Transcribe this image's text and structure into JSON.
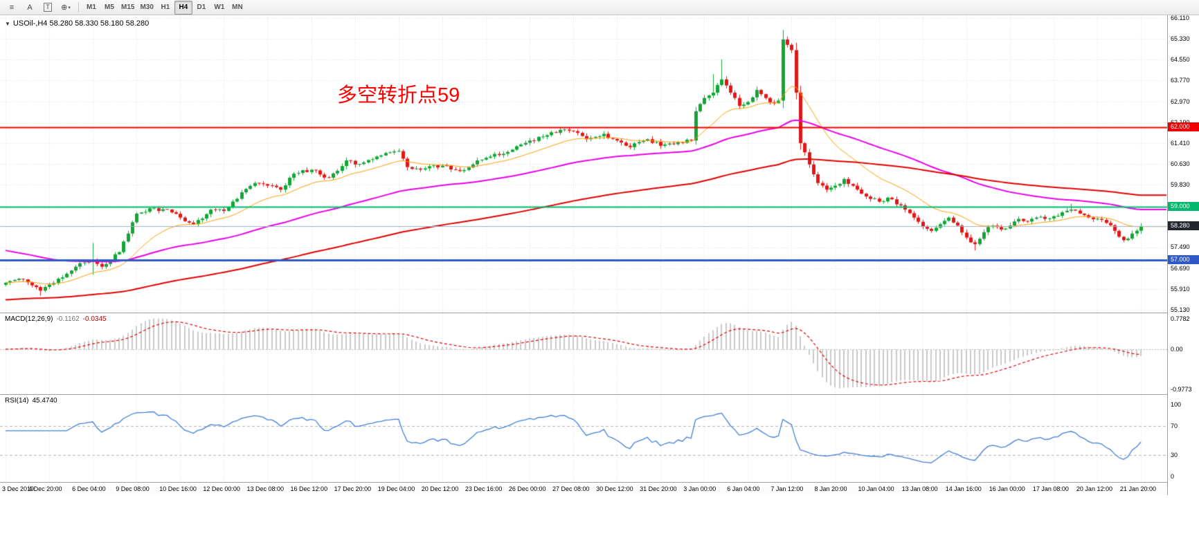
{
  "toolbar": {
    "icons": [
      {
        "name": "menu-icon",
        "glyph": "≡"
      },
      {
        "name": "text-tool-icon",
        "glyph": "A"
      },
      {
        "name": "text-frame-tool-icon",
        "glyph": "T"
      },
      {
        "name": "indicator-dropdown-icon",
        "glyph": "⊕",
        "caret": "▾"
      }
    ],
    "timeframes": [
      {
        "label": "M1",
        "active": false
      },
      {
        "label": "M5",
        "active": false
      },
      {
        "label": "M15",
        "active": false
      },
      {
        "label": "M30",
        "active": false
      },
      {
        "label": "H1",
        "active": false
      },
      {
        "label": "H4",
        "active": true
      },
      {
        "label": "D1",
        "active": false
      },
      {
        "label": "W1",
        "active": false
      },
      {
        "label": "MN",
        "active": false
      }
    ]
  },
  "price_panel": {
    "collapse_icon": "▼",
    "title": "USOil-,H4 58.280 58.330 58.180 58.280",
    "y_axis_labels": [
      {
        "text": "66.110",
        "value": 66.11
      },
      {
        "text": "65.330",
        "value": 65.33
      },
      {
        "text": "64.550",
        "value": 64.55
      },
      {
        "text": "63.770",
        "value": 63.77
      },
      {
        "text": "62.970",
        "value": 62.97
      },
      {
        "text": "62.190",
        "value": 62.19
      },
      {
        "text": "61.410",
        "value": 61.41
      },
      {
        "text": "60.630",
        "value": 60.63
      },
      {
        "text": "59.830",
        "value": 59.83
      },
      {
        "text": "57.490",
        "value": 57.49
      },
      {
        "text": "56.690",
        "value": 56.69
      },
      {
        "text": "55.910",
        "value": 55.91
      },
      {
        "text": "55.130",
        "value": 55.13
      }
    ],
    "annotation": {
      "text": "多空转折点59",
      "color": "#ff0000"
    }
  },
  "macd_panel": {
    "label": "MACD(12,26,9)",
    "main_value": "-0.1162",
    "signal_value": "-0.0345",
    "axis_labels": [
      "0.7782",
      "0.00",
      "-0.9773"
    ]
  },
  "rsi_panel": {
    "label": "RSI(14)",
    "value": "45.4740",
    "axis_labels": [
      "100",
      "70",
      "30",
      "0"
    ],
    "axis_values": [
      100,
      70,
      30,
      0
    ]
  },
  "time_axis": {
    "labels": [
      "3 Dec 2019",
      "4 Dec 20:00",
      "6 Dec 04:00",
      "9 Dec 08:00",
      "10 Dec 16:00",
      "12 Dec 00:00",
      "13 Dec 08:00",
      "16 Dec 12:00",
      "17 Dec 20:00",
      "19 Dec 04:00",
      "20 Dec 12:00",
      "23 Dec 16:00",
      "26 Dec 00:00",
      "27 Dec 08:00",
      "30 Dec 12:00",
      "31 Dec 20:00",
      "3 Jan 00:00",
      "6 Jan 04:00",
      "7 Jan 12:00",
      "8 Jan 20:00",
      "10 Jan 04:00",
      "13 Jan 08:00",
      "14 Jan 16:00",
      "16 Jan 00:00",
      "17 Jan 08:00",
      "20 Jan 12:00",
      "21 Jan 20:00"
    ]
  },
  "chart_data": {
    "type": "candlestick",
    "symbol": "USOil-",
    "timeframe": "H4",
    "current_ohlc": {
      "open": 58.28,
      "high": 58.33,
      "low": 58.18,
      "close": 58.28
    },
    "last_close": 58.28,
    "price_range": [
      55.13,
      66.11
    ],
    "grid_step": 0.78429,
    "bars": 261,
    "price_keypoints": [
      [
        0,
        56.15
      ],
      [
        3,
        56.3
      ],
      [
        6,
        56.05
      ],
      [
        8,
        55.85
      ],
      [
        12,
        56.3
      ],
      [
        16,
        56.75
      ],
      [
        20,
        57.0
      ],
      [
        22,
        56.75
      ],
      [
        26,
        57.3
      ],
      [
        28,
        58.0
      ],
      [
        30,
        58.75
      ],
      [
        34,
        58.95
      ],
      [
        38,
        58.8
      ],
      [
        40,
        58.6
      ],
      [
        43,
        58.35
      ],
      [
        47,
        58.9
      ],
      [
        50,
        58.85
      ],
      [
        54,
        59.55
      ],
      [
        57,
        59.9
      ],
      [
        60,
        59.8
      ],
      [
        63,
        59.65
      ],
      [
        66,
        60.25
      ],
      [
        70,
        60.4
      ],
      [
        74,
        60.1
      ],
      [
        78,
        60.75
      ],
      [
        80,
        60.6
      ],
      [
        84,
        60.8
      ],
      [
        88,
        61.05
      ],
      [
        90,
        61.1
      ],
      [
        92,
        60.5
      ],
      [
        96,
        60.45
      ],
      [
        100,
        60.55
      ],
      [
        104,
        60.35
      ],
      [
        108,
        60.75
      ],
      [
        110,
        60.85
      ],
      [
        114,
        61.0
      ],
      [
        118,
        61.35
      ],
      [
        120,
        61.5
      ],
      [
        124,
        61.7
      ],
      [
        127,
        61.9
      ],
      [
        130,
        61.85
      ],
      [
        133,
        61.55
      ],
      [
        137,
        61.75
      ],
      [
        140,
        61.5
      ],
      [
        143,
        61.25
      ],
      [
        147,
        61.55
      ],
      [
        150,
        61.3
      ],
      [
        154,
        61.45
      ],
      [
        157,
        61.5
      ],
      [
        158,
        62.6
      ],
      [
        160,
        63.1
      ],
      [
        162,
        63.3
      ],
      [
        164,
        63.8
      ],
      [
        166,
        63.3
      ],
      [
        168,
        62.8
      ],
      [
        170,
        62.95
      ],
      [
        172,
        63.4
      ],
      [
        174,
        63.1
      ],
      [
        176,
        62.9
      ],
      [
        177,
        63.0
      ],
      [
        178,
        65.3
      ],
      [
        179,
        65.1
      ],
      [
        180,
        64.9
      ],
      [
        181,
        63.3
      ],
      [
        182,
        61.4
      ],
      [
        184,
        60.6
      ],
      [
        186,
        59.9
      ],
      [
        188,
        59.65
      ],
      [
        190,
        59.8
      ],
      [
        192,
        60.05
      ],
      [
        194,
        59.8
      ],
      [
        196,
        59.5
      ],
      [
        198,
        59.3
      ],
      [
        200,
        59.2
      ],
      [
        202,
        59.35
      ],
      [
        204,
        59.1
      ],
      [
        206,
        58.9
      ],
      [
        208,
        58.6
      ],
      [
        210,
        58.25
      ],
      [
        212,
        58.1
      ],
      [
        214,
        58.35
      ],
      [
        216,
        58.6
      ],
      [
        218,
        58.3
      ],
      [
        220,
        57.85
      ],
      [
        222,
        57.6
      ],
      [
        224,
        58.05
      ],
      [
        226,
        58.3
      ],
      [
        228,
        58.15
      ],
      [
        230,
        58.3
      ],
      [
        232,
        58.55
      ],
      [
        234,
        58.45
      ],
      [
        236,
        58.6
      ],
      [
        238,
        58.55
      ],
      [
        240,
        58.65
      ],
      [
        242,
        58.8
      ],
      [
        244,
        58.9
      ],
      [
        246,
        58.75
      ],
      [
        248,
        58.6
      ],
      [
        250,
        58.55
      ],
      [
        252,
        58.4
      ],
      [
        254,
        58.1
      ],
      [
        256,
        57.75
      ],
      [
        258,
        58.0
      ],
      [
        260,
        58.28
      ]
    ],
    "wick_overrides": [
      [
        8,
        "low",
        55.66
      ],
      [
        20,
        "high",
        57.65
      ],
      [
        20,
        "low",
        56.45
      ],
      [
        162,
        "high",
        64.0
      ],
      [
        164,
        "high",
        64.55
      ],
      [
        178,
        "high",
        65.66
      ],
      [
        182,
        "low",
        61.15
      ],
      [
        222,
        "low",
        57.36
      ],
      [
        244,
        "high",
        59.12
      ]
    ],
    "horizontal_lines": [
      {
        "value": 62.0,
        "label": "62.000",
        "color": "#ee0000",
        "width": 2
      },
      {
        "value": 59.0,
        "label": "59.000",
        "color": "#00b96d",
        "width": 2
      },
      {
        "value": 57.0,
        "label": "57.000",
        "color": "#2e59c7",
        "width": 3
      }
    ],
    "current_price_line": {
      "value": 58.28,
      "label": "58.280",
      "color": "#9fb1c6",
      "badge_bg": "#23262c"
    },
    "moving_averages": [
      {
        "name": "ma-fast",
        "color": "#ff9c00",
        "period": 18,
        "width": 1,
        "seed": null
      },
      {
        "name": "ma-mid",
        "color": "#e800e8",
        "period": 70,
        "width": 2,
        "seed": 57.4
      },
      {
        "name": "ma-slow",
        "color": "#e00000",
        "period": 160,
        "width": 2,
        "seed": 55.5
      }
    ],
    "up_color": "#14a437",
    "down_color": "#e01717",
    "macd": {
      "fast": 12,
      "slow": 26,
      "signal": 9,
      "hist_color": "#c9c9c9",
      "signal_color": "#e00000",
      "axis_range": [
        -0.9773,
        0.7782
      ]
    },
    "rsi": {
      "period": 14,
      "color": "#3f7ed8",
      "levels": [
        70,
        30
      ],
      "range": [
        0,
        100
      ]
    }
  }
}
